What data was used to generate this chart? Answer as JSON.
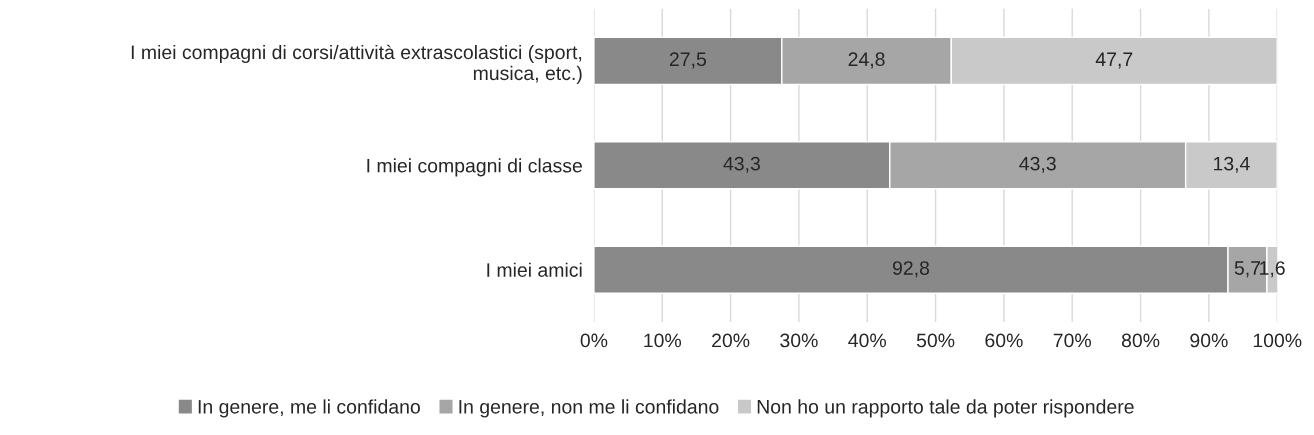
{
  "chart_data": {
    "type": "bar",
    "orientation": "horizontal",
    "stacked": true,
    "categories": [
      "I miei compagni di corsi/attività extrascolastici (sport,\nmusica, etc.)",
      "I miei compagni di classe",
      "I miei amici"
    ],
    "series": [
      {
        "name": "In genere, me li confidano",
        "color": "#898989",
        "values": [
          27.5,
          43.3,
          92.8
        ],
        "value_labels": [
          "27,5",
          "43,3",
          "92,8"
        ]
      },
      {
        "name": "In genere, non me li confidano",
        "color": "#a6a6a6",
        "values": [
          24.8,
          43.3,
          5.7
        ],
        "value_labels": [
          "24,8",
          "43,3",
          "5,7"
        ]
      },
      {
        "name": "Non ho un rapporto tale da poter rispondere",
        "color": "#c9c9c9",
        "values": [
          47.7,
          13.4,
          1.6
        ],
        "value_labels": [
          "47,7",
          "13,4",
          "1,6"
        ]
      }
    ],
    "xlim": [
      0,
      100
    ],
    "xticks": [
      {
        "value": 0,
        "label": "0%"
      },
      {
        "value": 10,
        "label": "10%"
      },
      {
        "value": 20,
        "label": "20%"
      },
      {
        "value": 30,
        "label": "30%"
      },
      {
        "value": 40,
        "label": "40%"
      },
      {
        "value": 50,
        "label": "50%"
      },
      {
        "value": 60,
        "label": "60%"
      },
      {
        "value": 70,
        "label": "70%"
      },
      {
        "value": 80,
        "label": "80%"
      },
      {
        "value": 90,
        "label": "90%"
      },
      {
        "value": 100,
        "label": "100%"
      }
    ],
    "grid": "x",
    "legend": "bottom"
  }
}
